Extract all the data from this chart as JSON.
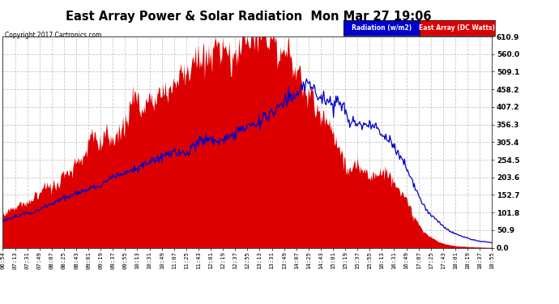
{
  "title": "East Array Power & Solar Radiation  Mon Mar 27 19:06",
  "copyright": "Copyright 2017 Cartronics.com",
  "legend_radiation": "Radiation (w/m2)",
  "legend_east": "East Array (DC Watts)",
  "ymax": 610.9,
  "ymin": 0.0,
  "yticks": [
    0.0,
    50.9,
    101.8,
    152.7,
    203.6,
    254.5,
    305.4,
    356.3,
    407.2,
    458.2,
    509.1,
    560.0,
    610.9
  ],
  "bg_color": "#ffffff",
  "plot_bg_color": "#ffffff",
  "grid_color": "#c8c8c8",
  "fill_color": "#dd0000",
  "line_color": "#0000cc",
  "xtick_labels": [
    "06:54",
    "07:13",
    "07:31",
    "07:49",
    "08:07",
    "08:25",
    "08:43",
    "09:01",
    "09:19",
    "09:37",
    "09:55",
    "10:13",
    "10:31",
    "10:49",
    "11:07",
    "11:25",
    "11:43",
    "12:01",
    "12:19",
    "12:37",
    "12:55",
    "13:13",
    "13:31",
    "13:49",
    "14:07",
    "14:25",
    "14:43",
    "15:01",
    "15:19",
    "15:37",
    "15:55",
    "16:13",
    "16:31",
    "16:49",
    "17:07",
    "17:25",
    "17:43",
    "18:01",
    "18:19",
    "18:37",
    "18:55"
  ],
  "n_points": 600
}
